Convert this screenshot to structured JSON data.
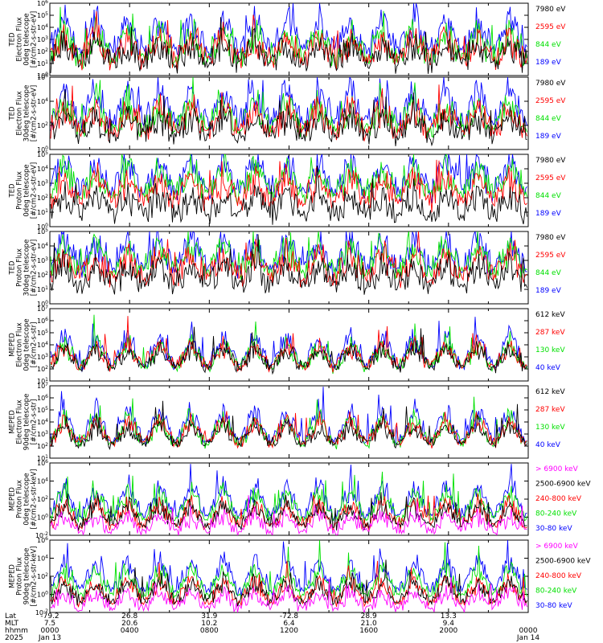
{
  "colors": {
    "black": "#000000",
    "red": "#ff0000",
    "green": "#00e000",
    "blue": "#0000ff",
    "magenta": "#ff00ff"
  },
  "chart_data": [
    {
      "type": "line",
      "ylabel": [
        "TED",
        "Electron Flux",
        "0deg telescope",
        "[#/cm2-s-str-eV]"
      ],
      "yscale": "log",
      "ylim": [
        1,
        1000000
      ],
      "ytick_labels": [
        "10^0",
        "10^1",
        "10^2",
        "10^3",
        "10^4",
        "10^5",
        "10^6"
      ],
      "legend": [
        {
          "label": "7980 eV",
          "color": "black"
        },
        {
          "label": "2595 eV",
          "color": "red"
        },
        {
          "label": "844 eV",
          "color": "green"
        },
        {
          "label": "189 eV",
          "color": "blue"
        }
      ],
      "series_levels": [
        [
          "blue",
          150
        ],
        [
          "green",
          30
        ],
        [
          "red",
          20
        ],
        [
          "black",
          12
        ]
      ]
    },
    {
      "type": "line",
      "ylabel": [
        "TED",
        "Electron Flux",
        "30deg telescope",
        "[#/cm2-s-str-eV]"
      ],
      "yscale": "log",
      "ylim": [
        1,
        1000000
      ],
      "ytick_labels": [
        "10^0",
        "10^2",
        "10^4",
        "10^6"
      ],
      "legend": [
        {
          "label": "7980 eV",
          "color": "black"
        },
        {
          "label": "2595 eV",
          "color": "red"
        },
        {
          "label": "844 eV",
          "color": "green"
        },
        {
          "label": "189 eV",
          "color": "blue"
        }
      ],
      "series_levels": [
        [
          "blue",
          250
        ],
        [
          "green",
          60
        ],
        [
          "red",
          30
        ],
        [
          "black",
          15
        ]
      ]
    },
    {
      "type": "line",
      "ylabel": [
        "TED",
        "Proton Flux",
        "0deg telescope",
        "[#/cm2-s-str-eV]"
      ],
      "yscale": "log",
      "ylim": [
        1,
        100000
      ],
      "ytick_labels": [
        "10^0",
        "10^1",
        "10^2",
        "10^3",
        "10^4",
        "10^5"
      ],
      "legend": [
        {
          "label": "7980 eV",
          "color": "black"
        },
        {
          "label": "2595 eV",
          "color": "red"
        },
        {
          "label": "844 eV",
          "color": "green"
        },
        {
          "label": "189 eV",
          "color": "blue"
        }
      ],
      "series_levels": [
        [
          "blue",
          300
        ],
        [
          "green",
          200
        ],
        [
          "red",
          60
        ],
        [
          "black",
          8
        ]
      ]
    },
    {
      "type": "line",
      "ylabel": [
        "TED",
        "Proton Flux",
        "30deg telescope",
        "[#/cm2-s-str-eV]"
      ],
      "yscale": "log",
      "ylim": [
        1,
        100000
      ],
      "ytick_labels": [
        "10^0",
        "10^1",
        "10^2",
        "10^3",
        "10^4",
        "10^5"
      ],
      "legend": [
        {
          "label": "7980 eV",
          "color": "black"
        },
        {
          "label": "2595 eV",
          "color": "red"
        },
        {
          "label": "844 eV",
          "color": "green"
        },
        {
          "label": "189 eV",
          "color": "blue"
        }
      ],
      "series_levels": [
        [
          "blue",
          300
        ],
        [
          "green",
          200
        ],
        [
          "red",
          80
        ],
        [
          "black",
          20
        ]
      ]
    },
    {
      "type": "line",
      "ylabel": [
        "MEPED",
        "Electron Flux",
        "0deg telescope",
        "[#/cm2-s-str]"
      ],
      "yscale": "log",
      "ylim": [
        10,
        10000000
      ],
      "ytick_labels": [
        "10^1",
        "10^2",
        "10^3",
        "10^4",
        "10^5",
        "10^6",
        "10^7"
      ],
      "legend": [
        {
          "label": "612 keV",
          "color": "black"
        },
        {
          "label": "287 keV",
          "color": "red"
        },
        {
          "label": "130 keV",
          "color": "green"
        },
        {
          "label": "40 keV",
          "color": "blue"
        }
      ],
      "series_levels": [
        [
          "blue",
          200
        ],
        [
          "green",
          130
        ],
        [
          "red",
          160
        ],
        [
          "black",
          140
        ]
      ]
    },
    {
      "type": "line",
      "ylabel": [
        "MEPED",
        "Electron Flux",
        "90deg telescope",
        "[#/cm2-s-str]"
      ],
      "yscale": "log",
      "ylim": [
        10,
        10000000
      ],
      "ytick_labels": [
        "10^1",
        "10^2",
        "10^3",
        "10^4",
        "10^5",
        "10^6",
        "10^7"
      ],
      "legend": [
        {
          "label": "612 keV",
          "color": "black"
        },
        {
          "label": "287 keV",
          "color": "red"
        },
        {
          "label": "130 keV",
          "color": "green"
        },
        {
          "label": "40 keV",
          "color": "blue"
        }
      ],
      "series_levels": [
        [
          "blue",
          300
        ],
        [
          "green",
          150
        ],
        [
          "red",
          200
        ],
        [
          "black",
          170
        ]
      ]
    },
    {
      "type": "line",
      "ylabel": [
        "MEPED",
        "Proton Flux",
        "0deg telescope",
        "[#/cm2-s-str-keV]"
      ],
      "yscale": "log",
      "ylim": [
        0.01,
        1000000
      ],
      "ytick_labels": [
        "10^-2",
        "10^0",
        "10^2",
        "10^4",
        "10^6"
      ],
      "legend": [
        {
          "label": "> 6900 keV",
          "color": "magenta"
        },
        {
          "label": "2500-6900 keV",
          "color": "black"
        },
        {
          "label": "240-800 keV",
          "color": "red"
        },
        {
          "label": "80-240 keV",
          "color": "green"
        },
        {
          "label": "30-80 keV",
          "color": "blue"
        }
      ],
      "series_levels": [
        [
          "blue",
          1.5
        ],
        [
          "green",
          0.8
        ],
        [
          "red",
          0.12
        ],
        [
          "black",
          0.15
        ],
        [
          "magenta",
          0.03
        ]
      ]
    },
    {
      "type": "line",
      "ylabel": [
        "MEPED",
        "Proton Flux",
        "90deg telescope",
        "[#/cm2-s-str-keV]"
      ],
      "yscale": "log",
      "ylim": [
        0.01,
        1000000
      ],
      "ytick_labels": [
        "10^-2",
        "10^0",
        "10^2",
        "10^4",
        "10^6"
      ],
      "legend": [
        {
          "label": "> 6900 keV",
          "color": "magenta"
        },
        {
          "label": "2500-6900 keV",
          "color": "black"
        },
        {
          "label": "240-800 keV",
          "color": "red"
        },
        {
          "label": "80-240 keV",
          "color": "green"
        },
        {
          "label": "30-80 keV",
          "color": "blue"
        }
      ],
      "series_levels": [
        [
          "blue",
          3
        ],
        [
          "green",
          1
        ],
        [
          "red",
          0.15
        ],
        [
          "black",
          0.2
        ],
        [
          "magenta",
          0.03
        ]
      ]
    }
  ],
  "x_axis": {
    "row_labels": [
      "Lat",
      "MLT",
      "hhmm",
      "2025"
    ],
    "ticks": [
      {
        "lat": "-79.2",
        "mlt": "7.5",
        "hhmm": "0000",
        "date": "Jan 13"
      },
      {
        "lat": "26.8",
        "mlt": "20.6",
        "hhmm": "0400",
        "date": ""
      },
      {
        "lat": "31.9",
        "mlt": "10.2",
        "hhmm": "0800",
        "date": ""
      },
      {
        "lat": "-72.8",
        "mlt": "6.4",
        "hhmm": "1200",
        "date": ""
      },
      {
        "lat": "28.9",
        "mlt": "21.0",
        "hhmm": "1600",
        "date": ""
      },
      {
        "lat": "13.3",
        "mlt": "9.4",
        "hhmm": "2000",
        "date": ""
      },
      {
        "lat": "",
        "mlt": "",
        "hhmm": "0000",
        "date": "Jan 14"
      }
    ]
  }
}
